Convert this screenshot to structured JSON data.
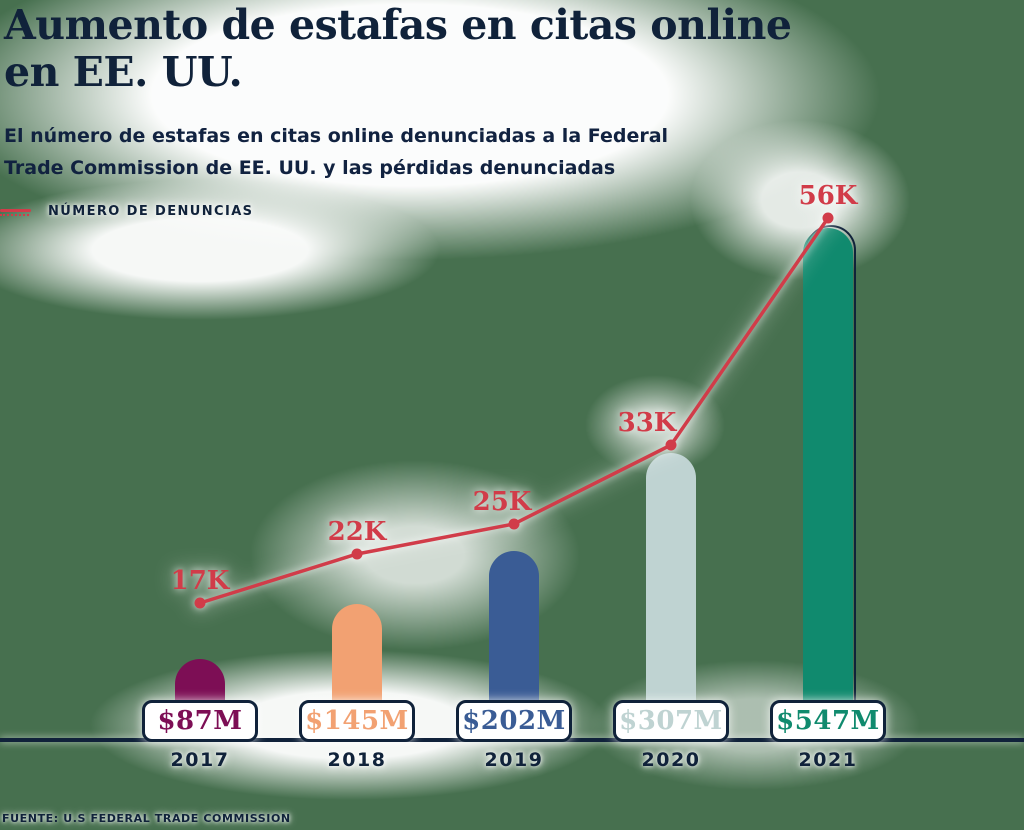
{
  "page": {
    "background_color": "#47704F",
    "source": "FUENTE: U.S FEDERAL TRADE COMMISSION"
  },
  "header": {
    "title_line1": "Aumento de estafas en citas online",
    "title_line2": "en EE. UU.",
    "subtitle_line1": "El número de estafas en citas online denunciadas a la Federal",
    "subtitle_line2": "Trade Commission de EE. UU. y las pérdidas denunciadas",
    "text_color": "#10223A"
  },
  "legend": {
    "label": "NÚMERO DE DENUNCIAS",
    "marker": "red-line-with-dotted-underline",
    "line_color": "#D13C49"
  },
  "chart_data": {
    "type": "combo-bar-line",
    "categories": [
      "2017",
      "2018",
      "2019",
      "2020",
      "2021"
    ],
    "series": [
      {
        "name": "NÚMERO DE DENUNCIAS",
        "type": "line",
        "unit": "denuncias (reports)",
        "color": "#D13C49",
        "values": [
          17000,
          22000,
          25000,
          33000,
          56000
        ],
        "point_labels": [
          "17K",
          "22K",
          "25K",
          "33K",
          "56K"
        ]
      },
      {
        "name": "Pérdidas denunciadas",
        "type": "bar",
        "unit": "USD millones",
        "values_millions": [
          87,
          145,
          202,
          307,
          547
        ],
        "value_labels": [
          "$87M",
          "$145M",
          "$202M",
          "$307M",
          "$547M"
        ],
        "bar_colors": [
          "#7D0E55",
          "#F2A172",
          "#3A5C95",
          "#BFD3D2",
          "#108A6E"
        ]
      }
    ],
    "axis": {
      "baseline_color": "#10223A",
      "gridlines": false,
      "y_axis_ticks": false,
      "value_boxes_at_base": true
    },
    "legend_position": "top-left"
  }
}
